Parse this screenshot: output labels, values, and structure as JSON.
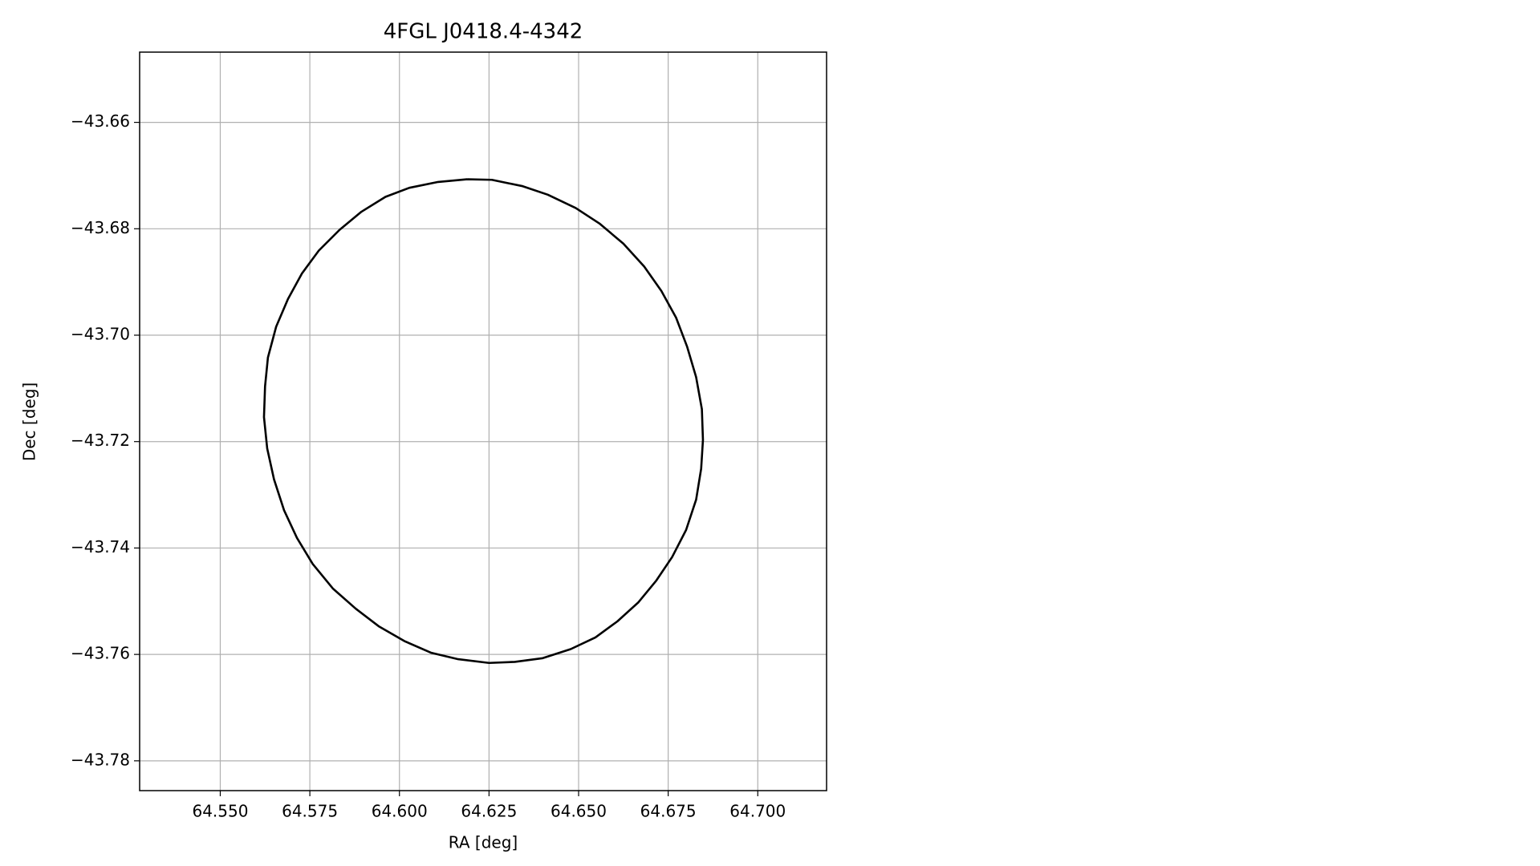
{
  "chart_data": {
    "type": "line",
    "title": "4FGL J0418.4-4342",
    "x_label": "RA [deg]",
    "y_label": "Dec [deg]",
    "color": "#000000",
    "grid": true,
    "xlim": [
      64.5275,
      64.7192
    ],
    "ylim": [
      -43.7856,
      -43.6468
    ],
    "xticks": [
      {
        "value": 64.55,
        "label": "64.550"
      },
      {
        "value": 64.575,
        "label": "64.575"
      },
      {
        "value": 64.6,
        "label": "64.600"
      },
      {
        "value": 64.625,
        "label": "64.625"
      },
      {
        "value": 64.65,
        "label": "64.650"
      },
      {
        "value": 64.675,
        "label": "64.675"
      },
      {
        "value": 64.7,
        "label": "64.700"
      }
    ],
    "yticks": [
      {
        "value": -43.66,
        "label": "−43.66"
      },
      {
        "value": -43.68,
        "label": "−43.68"
      },
      {
        "value": -43.7,
        "label": "−43.70"
      },
      {
        "value": -43.72,
        "label": "−43.72"
      },
      {
        "value": -43.74,
        "label": "−43.74"
      },
      {
        "value": -43.76,
        "label": "−43.76"
      },
      {
        "value": -43.78,
        "label": "−43.78"
      }
    ],
    "x": [
      64.6189,
      64.6258,
      64.6344,
      64.6414,
      64.6492,
      64.6558,
      64.6625,
      64.6683,
      64.6731,
      64.6772,
      64.6803,
      64.6828,
      64.6844,
      64.6847,
      64.6842,
      64.6828,
      64.68,
      64.6761,
      64.6717,
      64.6667,
      64.6608,
      64.6547,
      64.6478,
      64.64,
      64.6322,
      64.625,
      64.6164,
      64.6089,
      64.6014,
      64.5942,
      64.5878,
      64.5814,
      64.5758,
      64.5714,
      64.5678,
      64.565,
      64.5631,
      64.5622,
      64.5625,
      64.5633,
      64.5656,
      64.5689,
      64.5728,
      64.5775,
      64.5833,
      64.5894,
      64.5961,
      64.6028,
      64.6108,
      64.6189
    ],
    "values": [
      -43.6707,
      -43.6708,
      -43.672,
      -43.6736,
      -43.6761,
      -43.679,
      -43.6828,
      -43.6871,
      -43.6917,
      -43.6967,
      -43.7022,
      -43.7079,
      -43.7139,
      -43.7197,
      -43.7251,
      -43.7309,
      -43.7366,
      -43.7417,
      -43.7461,
      -43.7502,
      -43.7538,
      -43.7568,
      -43.759,
      -43.7607,
      -43.7614,
      -43.7616,
      -43.7609,
      -43.7597,
      -43.7575,
      -43.7547,
      -43.7514,
      -43.7476,
      -43.743,
      -43.7381,
      -43.7329,
      -43.7271,
      -43.7213,
      -43.7154,
      -43.7096,
      -43.7042,
      -43.6984,
      -43.6932,
      -43.6884,
      -43.6841,
      -43.6802,
      -43.6768,
      -43.674,
      -43.6723,
      -43.6712,
      -43.6707
    ]
  }
}
